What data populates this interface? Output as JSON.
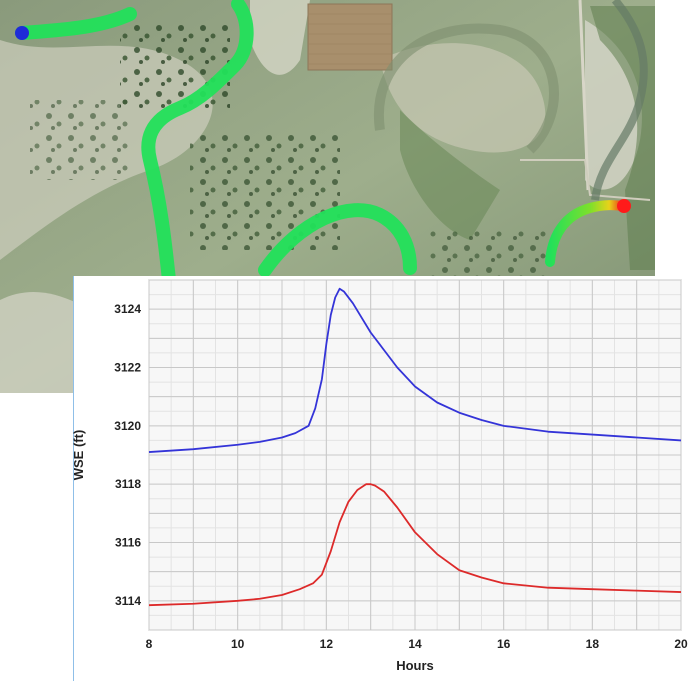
{
  "map": {
    "upstream_marker_color": "#1f2bd8",
    "downstream_marker_color": "#ff1a1a",
    "river_gradient_colors": [
      "#22e05a",
      "#7fe02a",
      "#e8d21a",
      "#e87a1a",
      "#ff2a1a"
    ]
  },
  "chart_data": {
    "type": "line",
    "title": "",
    "xlabel": "Hours",
    "ylabel": "WSE (ft)",
    "xlim": [
      8,
      20
    ],
    "ylim": [
      3113,
      3125
    ],
    "x_ticks": [
      8,
      10,
      12,
      14,
      16,
      18,
      20
    ],
    "y_ticks": [
      3114,
      3116,
      3118,
      3120,
      3122,
      3124
    ],
    "grid": true,
    "legend": "none",
    "series": [
      {
        "color": "#3434d8",
        "x": [
          8,
          9,
          10,
          10.5,
          11,
          11.3,
          11.6,
          11.75,
          11.9,
          12.0,
          12.1,
          12.2,
          12.3,
          12.4,
          12.6,
          12.8,
          13.0,
          13.3,
          13.6,
          14.0,
          14.5,
          15.0,
          15.5,
          16,
          17,
          18,
          19,
          20
        ],
        "values": [
          3119.1,
          3119.2,
          3119.35,
          3119.45,
          3119.6,
          3119.75,
          3120.0,
          3120.6,
          3121.6,
          3122.8,
          3123.8,
          3124.4,
          3124.7,
          3124.6,
          3124.2,
          3123.7,
          3123.2,
          3122.6,
          3122.0,
          3121.35,
          3120.8,
          3120.45,
          3120.2,
          3120.0,
          3119.8,
          3119.7,
          3119.6,
          3119.5
        ]
      },
      {
        "color": "#dd2a2a",
        "x": [
          8,
          9,
          10,
          10.5,
          11,
          11.4,
          11.7,
          11.9,
          12.1,
          12.3,
          12.5,
          12.7,
          12.9,
          13.0,
          13.1,
          13.3,
          13.6,
          14.0,
          14.5,
          15.0,
          15.5,
          16,
          17,
          18,
          19,
          20
        ],
        "values": [
          3113.85,
          3113.9,
          3114.0,
          3114.07,
          3114.2,
          3114.4,
          3114.6,
          3114.9,
          3115.7,
          3116.7,
          3117.4,
          3117.8,
          3118.0,
          3118.0,
          3117.95,
          3117.75,
          3117.2,
          3116.35,
          3115.6,
          3115.05,
          3114.8,
          3114.6,
          3114.45,
          3114.4,
          3114.35,
          3114.3
        ]
      }
    ]
  }
}
